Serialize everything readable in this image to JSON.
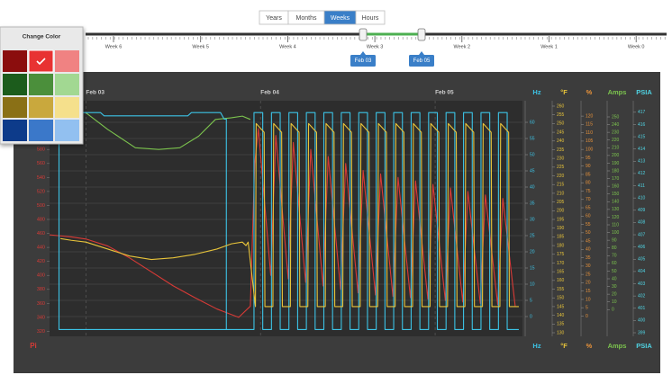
{
  "toolbar": {
    "buttons": [
      "Years",
      "Months",
      "Weeks",
      "Hours"
    ],
    "active": 2
  },
  "timeline": {
    "weeks": [
      "Week 6",
      "Week 5",
      "Week 4",
      "Week 3",
      "Week 2",
      "Week 1",
      "Week 0"
    ],
    "range": [
      "Feb 03",
      "Feb 05"
    ]
  },
  "color_picker": {
    "title": "Change Color"
  },
  "chart_data": {
    "type": "line",
    "grid": true,
    "xlim": [
      -5,
      60
    ],
    "xticks": [
      {
        "value": 0,
        "label": "Feb 03"
      },
      {
        "value": 24,
        "label": "Feb 04"
      },
      {
        "value": 48,
        "label": "Feb 05"
      }
    ],
    "axes": [
      {
        "name": "Pi",
        "color": "#d83a36",
        "side": "left",
        "lim": [
          318,
          642
        ],
        "ticks": [
          580,
          560,
          540,
          520,
          500,
          480,
          460,
          440,
          420,
          400,
          380,
          360,
          340,
          320
        ]
      },
      {
        "name": "Hz",
        "color": "#3cc3e6",
        "lim": [
          -5,
          65
        ],
        "ticks": [
          60,
          55,
          50,
          45,
          40,
          35,
          30,
          25,
          20,
          15,
          10,
          5,
          0
        ]
      },
      {
        "name": "°F",
        "color": "#e8c43a",
        "lim": [
          130,
          260
        ],
        "ticks": [
          260,
          255,
          250,
          245,
          240,
          235,
          230,
          225,
          220,
          215,
          210,
          205,
          200,
          195,
          190,
          185,
          180,
          175,
          170,
          165,
          160,
          155,
          150,
          145,
          140,
          135,
          130
        ]
      },
      {
        "name": "%",
        "color": "#e8923a",
        "lim": [
          -10,
          126
        ],
        "ticks": [
          120,
          115,
          110,
          105,
          100,
          95,
          90,
          85,
          80,
          75,
          70,
          65,
          60,
          55,
          50,
          45,
          40,
          35,
          30,
          25,
          20,
          15,
          10,
          5,
          0
        ]
      },
      {
        "name": "Amps",
        "color": "#7cc44e",
        "lim": [
          -30,
          264
        ],
        "ticks": [
          250,
          240,
          230,
          220,
          210,
          200,
          190,
          180,
          170,
          160,
          150,
          140,
          130,
          120,
          110,
          100,
          90,
          80,
          70,
          60,
          50,
          40,
          30,
          20,
          10,
          0
        ]
      },
      {
        "name": "PSIA",
        "color": "#4fd2e2",
        "lim": [
          399,
          417.5
        ],
        "ticks": [
          417,
          416,
          415,
          414,
          413,
          412,
          411,
          410,
          409,
          408,
          407,
          406,
          405,
          404,
          403,
          402,
          401,
          400,
          399
        ]
      }
    ],
    "series": [
      {
        "axis": "Pi",
        "color": "#d83a36",
        "x": [
          -5,
          -2,
          0,
          3,
          6,
          9,
          12,
          15,
          18,
          21,
          22.6,
          23.2,
          23.7,
          25.4,
          26.1,
          27.8,
          28.5,
          30.2,
          30.9,
          32.6,
          33.3,
          35.0,
          35.7,
          37.4,
          38.1,
          39.8,
          40.5,
          42.2,
          42.9,
          44.6,
          45.3,
          47.0,
          47.7,
          49.4,
          50.1,
          51.8,
          52.5,
          54.2,
          54.9,
          56.6,
          57.3,
          59.0
        ],
        "values": [
          458,
          455,
          452,
          442,
          425,
          405,
          385,
          368,
          352,
          340,
          356,
          560,
          610,
          400,
          600,
          395,
          590,
          390,
          580,
          385,
          570,
          380,
          560,
          375,
          550,
          372,
          545,
          370,
          540,
          368,
          535,
          366,
          530,
          364,
          525,
          362,
          520,
          360,
          515,
          358,
          510,
          356
        ]
      },
      {
        "axis": "%",
        "color": "#7cc44e",
        "x": [
          0,
          3,
          6.8,
          10,
          12.9,
          15.5,
          17.8,
          20,
          21.5,
          22.6
        ],
        "values": [
          122,
          112,
          101,
          100,
          101,
          108,
          118,
          119,
          120,
          118
        ]
      },
      {
        "axis": "Hz",
        "color": "#3cc3e6",
        "x": [
          -3.7,
          2,
          2.5,
          14,
          14.5,
          18.5,
          19,
          19.3,
          19.3
        ],
        "values": [
          63,
          63,
          62,
          62,
          63,
          63,
          61,
          61,
          -4
        ]
      },
      {
        "axis": "Hz",
        "color": "#3cc3e6",
        "x": [
          -5,
          -3.7,
          -3.7,
          22.6,
          23.1,
          23.1,
          24.3,
          24.3,
          25.5,
          25.5,
          26.7,
          26.7,
          27.9,
          27.9,
          29.1,
          29.1,
          30.3,
          30.3,
          31.5,
          31.5,
          32.7,
          32.7,
          33.9,
          33.9,
          35.1,
          35.1,
          36.3,
          36.3,
          37.5,
          37.5,
          38.7,
          38.7,
          39.9,
          39.9,
          41.1,
          41.1,
          42.3,
          42.3,
          43.5,
          43.5,
          44.7,
          44.7,
          45.9,
          45.9,
          47.1,
          47.1,
          48.3,
          48.3,
          49.5,
          49.5,
          50.7,
          50.7,
          51.9,
          51.9,
          53.1,
          53.1,
          54.3,
          54.3,
          55.5,
          55.5,
          56.7,
          56.7,
          57.9,
          57.9,
          59.5
        ],
        "values": [
          63,
          63,
          -4,
          -4,
          -4,
          63,
          63,
          -4,
          -4,
          63,
          63,
          -4,
          -4,
          63,
          63,
          -4,
          -4,
          63,
          63,
          -4,
          -4,
          63,
          63,
          -4,
          -4,
          63,
          63,
          -4,
          -4,
          63,
          63,
          -4,
          -4,
          63,
          63,
          -4,
          -4,
          63,
          63,
          -4,
          -4,
          63,
          63,
          -4,
          -4,
          63,
          63,
          -4,
          -4,
          63,
          63,
          -4,
          -4,
          63,
          63,
          -4,
          -4,
          63,
          63,
          -4,
          -4,
          63,
          63,
          -4,
          -4
        ]
      },
      {
        "axis": "°F",
        "color": "#e8c43a",
        "x": [
          -3.5,
          -2,
          0,
          3,
          6,
          9,
          12,
          15,
          18,
          20,
          21.5,
          22,
          22.3,
          23.3,
          23.4,
          24.5,
          24.6,
          25.7,
          25.8,
          26.9,
          27.0,
          28.1,
          28.2,
          29.3,
          29.4,
          30.5,
          30.6,
          31.7,
          31.8,
          32.9,
          33.0,
          34.1,
          34.2,
          35.3,
          35.4,
          36.5,
          36.6,
          37.7,
          37.8,
          38.9,
          39.0,
          40.1,
          40.2,
          41.3,
          41.4,
          42.5,
          42.6,
          43.7,
          43.8,
          44.9,
          45.0,
          46.1,
          46.2,
          47.3,
          47.4,
          48.5,
          48.6,
          49.7,
          49.8,
          50.9,
          51.0,
          52.1,
          52.2,
          53.3,
          53.4,
          54.5,
          54.6,
          55.7,
          55.8,
          56.9,
          57.0,
          58.1,
          58.2,
          59.5
        ],
        "values": [
          184,
          183,
          182,
          178,
          174,
          172,
          173,
          175,
          178,
          181,
          182,
          180,
          182,
          145,
          250,
          245,
          145,
          145,
          250,
          245,
          145,
          145,
          250,
          245,
          145,
          145,
          250,
          245,
          145,
          145,
          250,
          245,
          145,
          145,
          250,
          245,
          145,
          145,
          250,
          245,
          145,
          145,
          250,
          245,
          145,
          145,
          250,
          245,
          145,
          145,
          250,
          245,
          145,
          145,
          250,
          245,
          145,
          145,
          250,
          245,
          145,
          145,
          250,
          245,
          145,
          145,
          250,
          245,
          145,
          145,
          250,
          245,
          145,
          145
        ]
      }
    ]
  }
}
